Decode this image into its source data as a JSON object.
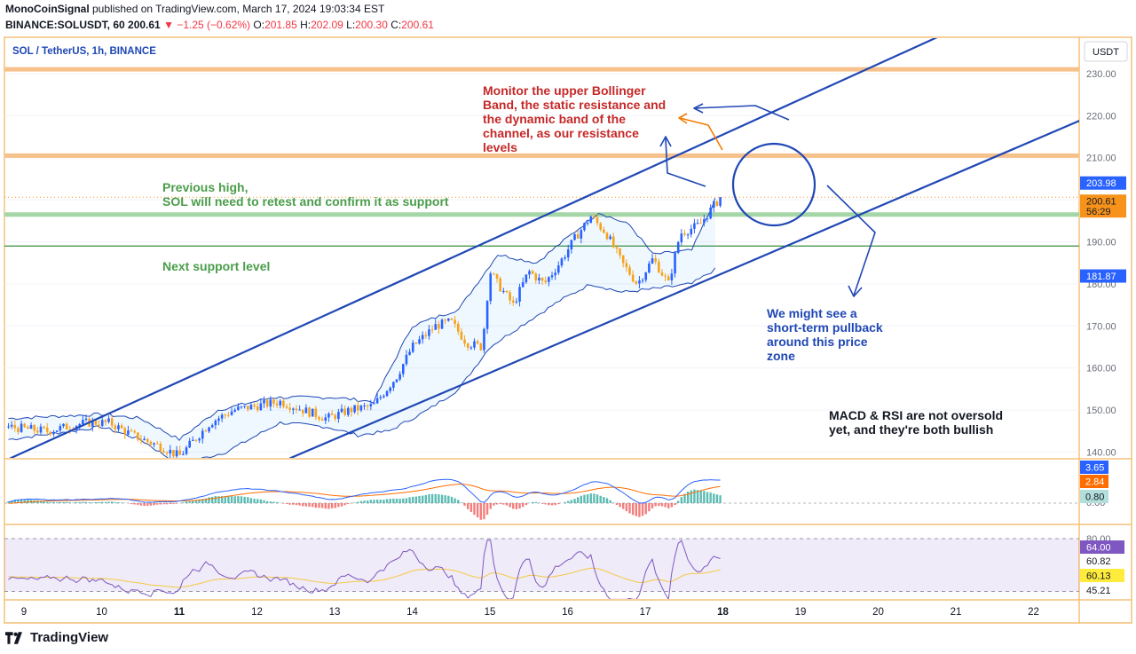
{
  "header": {
    "author": "MonoCoinSignal",
    "published_text": "published on TradingView.com, March 17, 2024 19:03:34 EST",
    "symbol": "BINANCE:SOLUSDT, 60",
    "last": "200.61",
    "change": "−1.25 (−0.62%)",
    "o_label": "O:",
    "o": "201.85",
    "h_label": "H:",
    "h": "202.09",
    "l_label": "L:",
    "l": "200.30",
    "c_label": "C:",
    "c": "200.61"
  },
  "pane_title": "SOL / TetherUS, 1h, BINANCE",
  "currency": "USDT",
  "footer": {
    "brand": "TradingView"
  },
  "colors": {
    "up": "#2962ff",
    "down": "#f7a21b",
    "channel": "#1f47b5",
    "resistance": "#f7c18b",
    "support_green": "#a5d6a7",
    "support_line": "#4caf50",
    "annot_red": "#c62828",
    "annot_green": "#43a047",
    "annot_blue": "#1f47b5",
    "macd": "#2962ff",
    "signal": "#ff6d00",
    "rsi": "#7e57c2",
    "rsi_ma": "#f5c842"
  },
  "annotations": {
    "resistance_note": [
      "Monitor the upper Bollinger",
      "Band, the static resistance and",
      "the dynamic band of the",
      "channel, as our resistance",
      "levels"
    ],
    "previous_high": [
      "Previous high,",
      "SOL will need to retest and confirm it as support"
    ],
    "next_support": "Next support level",
    "pullback": [
      "We might see a",
      "short-term pullback",
      "around this price",
      "zone"
    ],
    "macd_rsi": [
      "MACD & RSI are not oversold",
      "yet, and they're both bullish"
    ]
  },
  "chart_data": [
    {
      "type": "candlestick",
      "title": "SOL / TetherUS, 1h, BINANCE",
      "ylabel": "USDT",
      "x_ticks": [
        "9",
        "10",
        "11",
        "12",
        "13",
        "14",
        "15",
        "16",
        "17",
        "18",
        "19",
        "20",
        "21",
        "22"
      ],
      "x_ticks_bold": [
        "11",
        "18"
      ],
      "y_ticks": [
        140,
        150,
        160,
        170,
        180,
        190,
        200,
        210,
        220,
        230
      ],
      "ylim": [
        138.5,
        240
      ],
      "xlim": [
        8.77,
        23.0
      ],
      "y_badges": [
        {
          "value": "203.98",
          "color": "#2962ff"
        },
        {
          "value": "200.61",
          "sub": "56:29",
          "color": "#f7931a"
        },
        {
          "value": "181.87",
          "color": "#2962ff"
        }
      ],
      "levels": [
        {
          "name": "static-resistance-231",
          "value": 231
        },
        {
          "name": "static-resistance-210",
          "value": 210.5
        },
        {
          "name": "previous-high",
          "value": 196.5
        },
        {
          "name": "next-support",
          "value": 189
        },
        {
          "name": "last-price",
          "value": 200.61
        }
      ],
      "channel": {
        "upper": [
          [
            8.82,
            138.5
          ],
          [
            21.4,
            244.0
          ]
        ],
        "lower": [
          [
            12.42,
            138.5
          ],
          [
            23.0,
            222.0
          ]
        ]
      },
      "bollinger_anchors": {
        "upper": [
          [
            8.8,
            148
          ],
          [
            10,
            149
          ],
          [
            10.5,
            148
          ],
          [
            11,
            143
          ],
          [
            11.5,
            150
          ],
          [
            12.2,
            153
          ],
          [
            13,
            153
          ],
          [
            13.5,
            152
          ],
          [
            14,
            170
          ],
          [
            14.6,
            174
          ],
          [
            15.1,
            187
          ],
          [
            15.6,
            185
          ],
          [
            16,
            191
          ],
          [
            16.4,
            197
          ],
          [
            16.8,
            194
          ],
          [
            17.1,
            187
          ],
          [
            17.6,
            188
          ],
          [
            17.95,
            202
          ]
        ],
        "lower": [
          [
            8.8,
            143
          ],
          [
            10,
            146
          ],
          [
            10.5,
            143
          ],
          [
            11,
            137
          ],
          [
            11.6,
            140
          ],
          [
            12.3,
            147
          ],
          [
            12.9,
            146
          ],
          [
            13.3,
            144
          ],
          [
            13.7,
            145
          ],
          [
            14.2,
            150
          ],
          [
            14.6,
            155
          ],
          [
            15.0,
            165
          ],
          [
            15.4,
            170
          ],
          [
            15.9,
            176
          ],
          [
            16.3,
            180
          ],
          [
            16.7,
            178
          ],
          [
            17.2,
            179
          ],
          [
            17.6,
            180
          ],
          [
            17.95,
            184
          ]
        ]
      },
      "price_anchors": [
        [
          8.8,
          146
        ],
        [
          9.3,
          145
        ],
        [
          9.8,
          147
        ],
        [
          10.1,
          147
        ],
        [
          10.4,
          144
        ],
        [
          10.8,
          141
        ],
        [
          11.0,
          139
        ],
        [
          11.2,
          143
        ],
        [
          11.4,
          147
        ],
        [
          11.7,
          150
        ],
        [
          12.0,
          151
        ],
        [
          12.3,
          152
        ],
        [
          12.6,
          150
        ],
        [
          12.9,
          148
        ],
        [
          13.2,
          150
        ],
        [
          13.5,
          151
        ],
        [
          13.8,
          158
        ],
        [
          14.0,
          165
        ],
        [
          14.3,
          170
        ],
        [
          14.5,
          171
        ],
        [
          14.7,
          166
        ],
        [
          14.9,
          165
        ],
        [
          15.0,
          183
        ],
        [
          15.1,
          180
        ],
        [
          15.3,
          175
        ],
        [
          15.5,
          183
        ],
        [
          15.7,
          180
        ],
        [
          15.9,
          185
        ],
        [
          16.1,
          191
        ],
        [
          16.3,
          196
        ],
        [
          16.5,
          192
        ],
        [
          16.7,
          185
        ],
        [
          16.9,
          180
        ],
        [
          17.1,
          186
        ],
        [
          17.3,
          180
        ],
        [
          17.45,
          192
        ],
        [
          17.7,
          194
        ],
        [
          17.9,
          199
        ],
        [
          17.98,
          200.61
        ]
      ]
    },
    {
      "type": "macd",
      "badges": [
        "3.65",
        "2.84",
        "0.80"
      ],
      "y_ticks_partial": [
        "0.00"
      ]
    },
    {
      "type": "rsi",
      "y_ticks": [
        "80.00",
        "60.82",
        "45.21"
      ],
      "badges": [
        "64.00",
        "60.13"
      ]
    }
  ]
}
